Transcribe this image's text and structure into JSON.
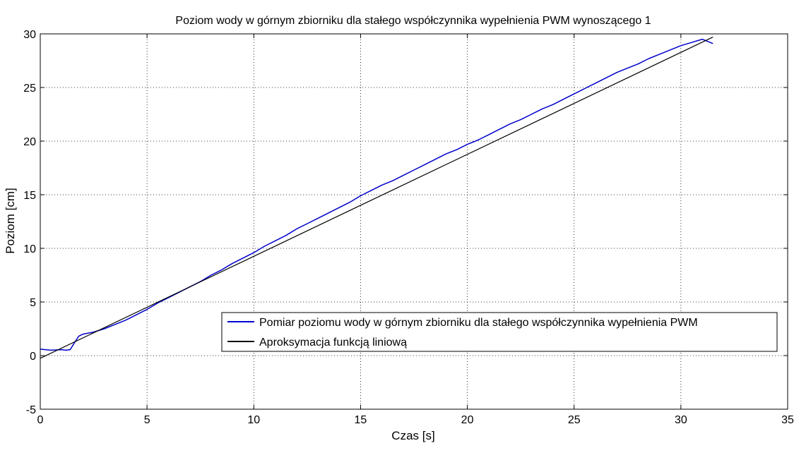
{
  "chart_data": {
    "type": "line",
    "title": "Poziom wody w górnym zbiorniku dla stałego współczynnika wypełnienia PWM wynoszącego 1",
    "xlabel": "Czas [s]",
    "ylabel": "Poziom [cm]",
    "xlim": [
      0,
      35
    ],
    "ylim": [
      -5,
      30
    ],
    "xticks": [
      0,
      5,
      10,
      15,
      20,
      25,
      30,
      35
    ],
    "yticks": [
      -5,
      0,
      5,
      10,
      15,
      20,
      25,
      30
    ],
    "xtick_labels": [
      "0",
      "5",
      "10",
      "15",
      "20",
      "25",
      "30",
      "35"
    ],
    "ytick_labels": [
      "-5",
      "0",
      "5",
      "10",
      "15",
      "20",
      "25",
      "30"
    ],
    "grid": true,
    "legend_position": "lower-right",
    "series": [
      {
        "name": "Pomiar poziomu wody w górnym zbiorniku dla stałego współczynnika wypełnienia PWM",
        "color": "#0000cc",
        "x": [
          0,
          0.5,
          1.0,
          1.2,
          1.4,
          1.6,
          1.8,
          2.0,
          2.5,
          3.0,
          3.5,
          4.0,
          4.5,
          5.0,
          5.5,
          6.0,
          6.5,
          7.0,
          7.5,
          8.0,
          8.5,
          9.0,
          9.5,
          10.0,
          10.5,
          11.0,
          11.5,
          12.0,
          12.5,
          13.0,
          13.5,
          14.0,
          14.5,
          15.0,
          15.5,
          16.0,
          16.5,
          17.0,
          17.5,
          18.0,
          18.5,
          19.0,
          19.5,
          20.0,
          20.5,
          21.0,
          21.5,
          22.0,
          22.5,
          23.0,
          23.5,
          24.0,
          24.5,
          25.0,
          25.5,
          26.0,
          26.5,
          27.0,
          27.5,
          28.0,
          28.5,
          29.0,
          29.5,
          30.0,
          30.5,
          31.0,
          31.5
        ],
        "y": [
          0.6,
          0.5,
          0.55,
          0.5,
          0.55,
          1.2,
          1.8,
          2.0,
          2.2,
          2.5,
          2.9,
          3.3,
          3.8,
          4.3,
          4.9,
          5.4,
          5.9,
          6.4,
          6.9,
          7.5,
          8.0,
          8.6,
          9.1,
          9.6,
          10.2,
          10.7,
          11.2,
          11.8,
          12.3,
          12.8,
          13.3,
          13.8,
          14.3,
          14.9,
          15.4,
          15.9,
          16.3,
          16.8,
          17.3,
          17.8,
          18.3,
          18.8,
          19.2,
          19.7,
          20.1,
          20.6,
          21.1,
          21.6,
          22.0,
          22.5,
          23.0,
          23.4,
          23.9,
          24.4,
          24.9,
          25.4,
          25.9,
          26.4,
          26.8,
          27.2,
          27.7,
          28.1,
          28.5,
          28.9,
          29.2,
          29.5,
          29.1
        ]
      },
      {
        "name": "Aproksymacja funkcją liniową",
        "color": "#000000",
        "x": [
          0,
          31.5
        ],
        "y": [
          -0.25,
          29.7
        ]
      }
    ]
  }
}
